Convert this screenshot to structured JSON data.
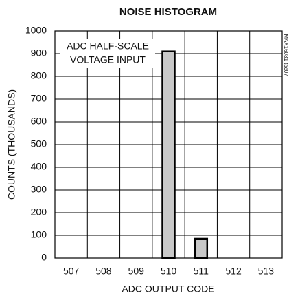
{
  "chart_data": {
    "type": "bar",
    "title": "NOISE HISTOGRAM",
    "x_label": "ADC OUTPUT CODE",
    "y_label": "COUNTS (THOUSANDS)",
    "annotation": [
      "ADC HALF-SCALE",
      "VOLTAGE INPUT"
    ],
    "side_note": "MAX16031 toc07",
    "categories": [
      "507",
      "508",
      "509",
      "510",
      "511",
      "512",
      "513"
    ],
    "values": [
      0,
      0,
      0,
      910,
      85,
      0,
      0
    ],
    "color": "#c8c8c8",
    "ylim": [
      0,
      1000
    ],
    "yticks": [
      0,
      100,
      200,
      300,
      400,
      500,
      600,
      700,
      800,
      900,
      1000
    ],
    "grid": true
  }
}
